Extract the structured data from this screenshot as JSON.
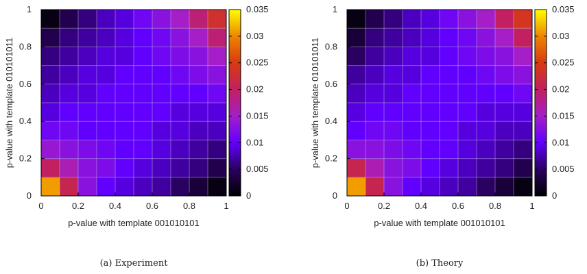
{
  "chart_data": [
    {
      "type": "heatmap",
      "caption": "(a) Experiment",
      "xlabel": "p-value with template 001010101",
      "ylabel": "p-value with template 010101011",
      "xlim": [
        0,
        1
      ],
      "ylim": [
        0,
        1
      ],
      "xticks": [
        "0",
        "0.2",
        "0.4",
        "0.6",
        "0.8",
        "1"
      ],
      "yticks": [
        "0",
        "0.2",
        "0.4",
        "0.6",
        "0.8",
        "1"
      ],
      "colorbar": {
        "range": [
          0,
          0.035
        ],
        "ticks": [
          "0",
          "0.005",
          "0.01",
          "0.015",
          "0.02",
          "0.025",
          "0.03",
          "0.035"
        ]
      },
      "grid": true,
      "x": [
        0.05,
        0.15,
        0.25,
        0.35,
        0.45,
        0.55,
        0.65,
        0.75,
        0.85,
        0.95
      ],
      "y": [
        0.05,
        0.15,
        0.25,
        0.35,
        0.45,
        0.55,
        0.65,
        0.75,
        0.85,
        0.95
      ],
      "values": [
        [
          0.031,
          0.021,
          0.013,
          0.01,
          0.009,
          0.008,
          0.007,
          0.005,
          0.003,
          0.001
        ],
        [
          0.02,
          0.016,
          0.013,
          0.012,
          0.01,
          0.009,
          0.008,
          0.007,
          0.006,
          0.004
        ],
        [
          0.014,
          0.013,
          0.012,
          0.011,
          0.01,
          0.01,
          0.009,
          0.008,
          0.007,
          0.006
        ],
        [
          0.011,
          0.011,
          0.01,
          0.01,
          0.01,
          0.01,
          0.009,
          0.009,
          0.008,
          0.008
        ],
        [
          0.009,
          0.01,
          0.01,
          0.01,
          0.01,
          0.01,
          0.01,
          0.009,
          0.009,
          0.009
        ],
        [
          0.008,
          0.009,
          0.009,
          0.01,
          0.01,
          0.01,
          0.01,
          0.01,
          0.01,
          0.011
        ],
        [
          0.007,
          0.008,
          0.009,
          0.009,
          0.01,
          0.01,
          0.01,
          0.011,
          0.012,
          0.013
        ],
        [
          0.006,
          0.007,
          0.008,
          0.009,
          0.009,
          0.01,
          0.011,
          0.012,
          0.013,
          0.015
        ],
        [
          0.004,
          0.006,
          0.007,
          0.008,
          0.009,
          0.01,
          0.011,
          0.013,
          0.015,
          0.019
        ],
        [
          0.001,
          0.004,
          0.006,
          0.008,
          0.009,
          0.011,
          0.013,
          0.015,
          0.019,
          0.023
        ]
      ]
    },
    {
      "type": "heatmap",
      "caption": "(b) Theory",
      "xlabel": "p-value with template 001010101",
      "ylabel": "p-value with template 010101011",
      "xlim": [
        0,
        1
      ],
      "ylim": [
        0,
        1
      ],
      "xticks": [
        "0",
        "0.2",
        "0.4",
        "0.6",
        "0.8",
        "1"
      ],
      "yticks": [
        "0",
        "0.2",
        "0.4",
        "0.6",
        "0.8",
        "1"
      ],
      "colorbar": {
        "range": [
          0,
          0.035
        ],
        "ticks": [
          "0",
          "0.005",
          "0.01",
          "0.015",
          "0.02",
          "0.025",
          "0.03",
          "0.035"
        ]
      },
      "grid": true,
      "x": [
        0.05,
        0.15,
        0.25,
        0.35,
        0.45,
        0.55,
        0.65,
        0.75,
        0.85,
        0.95
      ],
      "y": [
        0.05,
        0.15,
        0.25,
        0.35,
        0.45,
        0.55,
        0.65,
        0.75,
        0.85,
        0.95
      ],
      "values": [
        [
          0.031,
          0.021,
          0.013,
          0.01,
          0.009,
          0.008,
          0.007,
          0.005,
          0.003,
          0.001
        ],
        [
          0.021,
          0.016,
          0.013,
          0.012,
          0.01,
          0.009,
          0.008,
          0.007,
          0.006,
          0.004
        ],
        [
          0.013,
          0.013,
          0.012,
          0.011,
          0.01,
          0.01,
          0.009,
          0.008,
          0.007,
          0.006
        ],
        [
          0.01,
          0.011,
          0.011,
          0.01,
          0.01,
          0.01,
          0.009,
          0.009,
          0.008,
          0.008
        ],
        [
          0.009,
          0.01,
          0.01,
          0.01,
          0.01,
          0.01,
          0.01,
          0.009,
          0.009,
          0.009
        ],
        [
          0.008,
          0.009,
          0.009,
          0.01,
          0.01,
          0.01,
          0.01,
          0.01,
          0.01,
          0.011
        ],
        [
          0.007,
          0.008,
          0.009,
          0.009,
          0.01,
          0.01,
          0.01,
          0.011,
          0.012,
          0.013
        ],
        [
          0.005,
          0.007,
          0.008,
          0.009,
          0.009,
          0.01,
          0.011,
          0.012,
          0.013,
          0.015
        ],
        [
          0.003,
          0.006,
          0.007,
          0.008,
          0.009,
          0.01,
          0.011,
          0.013,
          0.015,
          0.02
        ],
        [
          0.001,
          0.004,
          0.006,
          0.008,
          0.009,
          0.011,
          0.013,
          0.015,
          0.02,
          0.024
        ]
      ]
    }
  ]
}
